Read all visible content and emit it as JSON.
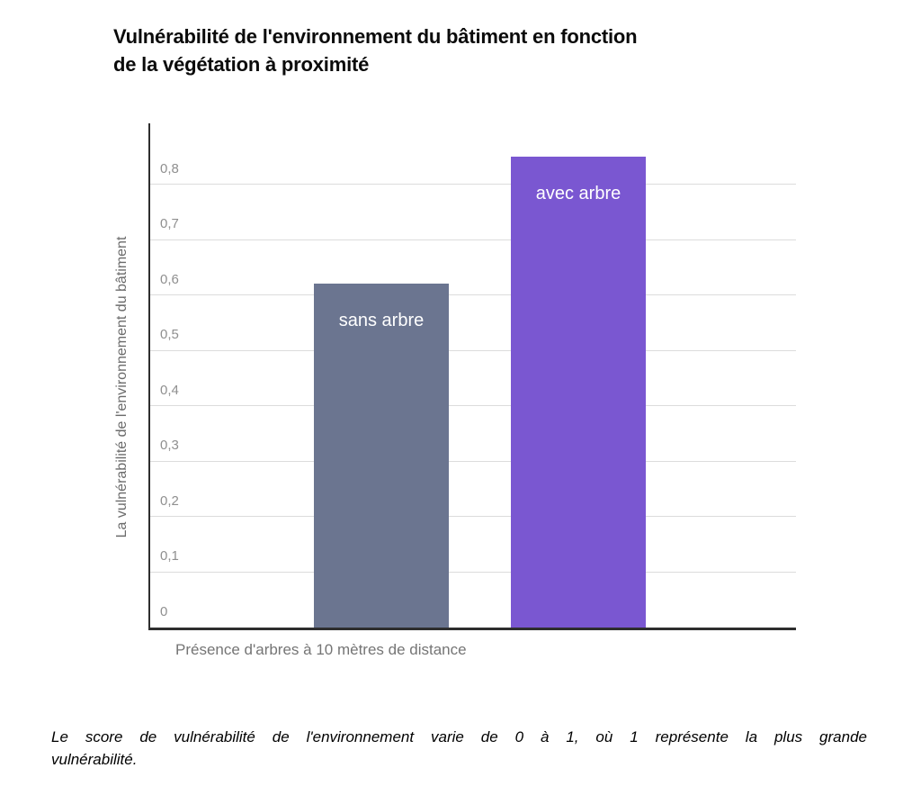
{
  "title": {
    "lines": [
      "Vulnérabilité de l'environnement du bâtiment en fonction",
      "de la végétation à proximité"
    ]
  },
  "chart_data": {
    "type": "bar",
    "title": "Vulnérabilité de l'environnement du bâtiment en fonction de la végétation à proximité",
    "categories": [
      "sans arbre",
      "avec arbre"
    ],
    "values": [
      0.62,
      0.85
    ],
    "bar_colors": [
      "#6B7590",
      "#7A57D1"
    ],
    "bar_label_color": "#FFFFFF",
    "bar_labels_position": "inside-top",
    "xlabel": "Présence d'arbres à 10 mètres de distance",
    "ylabel": "La vulnérabilité de l'environnement du bâtiment",
    "yticks": [
      "0",
      "0,1",
      "0,2",
      "0,3",
      "0,4",
      "0,5",
      "0,6",
      "0,7",
      "0,8"
    ],
    "ytick_values": [
      0,
      0.1,
      0.2,
      0.3,
      0.4,
      0.5,
      0.6,
      0.7,
      0.8
    ],
    "ylim": [
      0,
      0.91
    ],
    "grid": true,
    "gridline_color": "#DCDCDC",
    "axis_color": "#2E2E2E",
    "tick_label_color": "#8F8F8F",
    "legend": "none"
  },
  "footnote": {
    "lines": [
      "Le score de vulnérabilité de l'environnement varie de 0 à 1, où 1 représente la plus grande",
      "vulnérabilité."
    ]
  }
}
